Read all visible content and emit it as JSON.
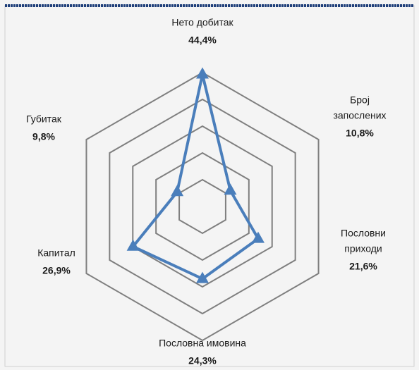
{
  "chart_data": {
    "type": "radar",
    "categories": [
      [
        "Нето добитак"
      ],
      [
        "Број",
        "запослених"
      ],
      [
        "Пословни",
        "приходи"
      ],
      [
        "Пословна имовина"
      ],
      [
        "Капитал"
      ],
      [
        "Губитак"
      ]
    ],
    "series": [
      {
        "color": "#4a7ebb",
        "values": [
          44.4,
          10.8,
          21.6,
          24.3,
          26.9,
          9.8
        ],
        "value_labels": [
          "44,4%",
          "10,8%",
          "21,6%",
          "24,3%",
          "26,9%",
          "9,8%"
        ]
      }
    ],
    "rlim": [
      0,
      45
    ],
    "rticks": [
      9,
      18,
      27,
      36,
      45
    ],
    "grid": true,
    "grid_color": "#7f7f7f"
  }
}
